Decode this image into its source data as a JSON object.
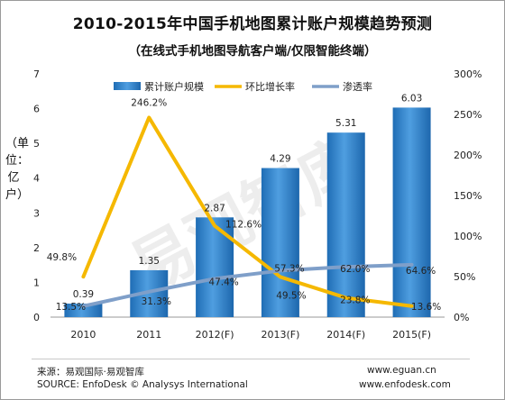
{
  "header": {
    "title": "2010-2015年中国手机地图累计账户规模趋势预测",
    "subtitle": "（在线式手机地图导航客户端/仅限智能终端）"
  },
  "watermark": "易观智库",
  "footer": {
    "source_cn": "来源：易观国际·易观智库",
    "source_en": "SOURCE: EnfoDesk © Analysys International",
    "url1": "www.eguan.cn",
    "url2": "www.enfodesk.com"
  },
  "chart_data": {
    "type": "bar",
    "categories": [
      "2010",
      "2011",
      "2012(F)",
      "2013(F)",
      "2014(F)",
      "2015(F)"
    ],
    "ylabel": "（单位：亿户）",
    "ylim": [
      0,
      7
    ],
    "y_ticks": [
      "0",
      "1",
      "2",
      "3",
      "4",
      "5",
      "6",
      "7"
    ],
    "y2lim": [
      0,
      300
    ],
    "y2_ticks": [
      "0%",
      "50%",
      "100%",
      "150%",
      "200%",
      "250%",
      "300%"
    ],
    "legend_position": "top",
    "series": [
      {
        "name": "累计账户规模",
        "type": "bar",
        "axis": "left",
        "color": "#2f7fc8",
        "values": [
          0.39,
          1.35,
          2.87,
          4.29,
          5.31,
          6.03
        ],
        "labels": [
          "0.39",
          "1.35",
          "2.87",
          "4.29",
          "5.31",
          "6.03"
        ]
      },
      {
        "name": "环比增长率",
        "type": "line",
        "axis": "right",
        "color": "#f5b800",
        "values": [
          49.8,
          246.2,
          112.6,
          49.5,
          23.8,
          13.6
        ],
        "labels": [
          "49.8%",
          "246.2%",
          "112.6%",
          "49.5%",
          "23.8%",
          "13.6%"
        ]
      },
      {
        "name": "渗透率",
        "type": "line",
        "axis": "right",
        "color": "#7f9fc9",
        "values": [
          13.5,
          31.3,
          47.4,
          57.3,
          62.0,
          64.6
        ],
        "labels": [
          "13.5%",
          "31.3%",
          "47.4%",
          "57.3%",
          "62.0%",
          "64.6%"
        ]
      }
    ]
  }
}
